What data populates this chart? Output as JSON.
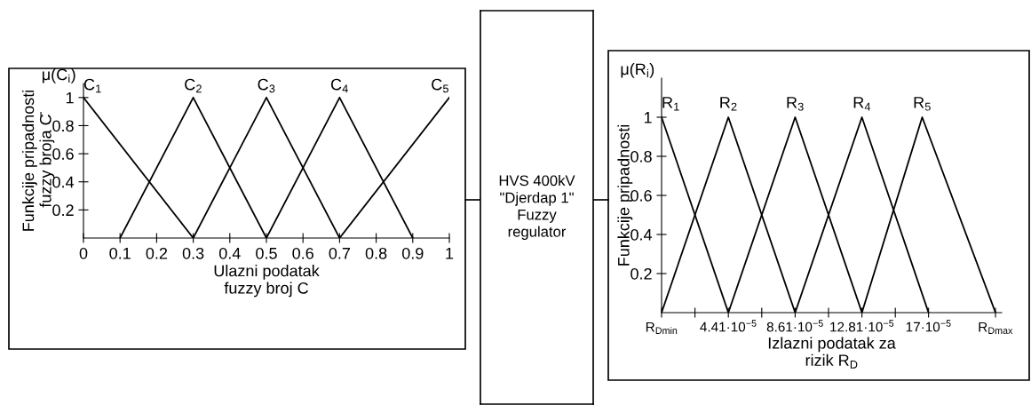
{
  "chart_data": [
    {
      "type": "line",
      "annotations": [
        "μ(C$_{i}$)"
      ],
      "ylabel": "Funkcije pripadnosti\nfuzzy broja C̄",
      "xlabel": "Ulazni podatak\nfuzzy broj C",
      "xlim": [
        0,
        1
      ],
      "xticks": [
        0,
        0.1,
        0.2,
        0.3,
        0.4,
        0.5,
        0.6,
        0.7,
        0.8,
        0.9,
        {
          "value": 1,
          "label": "1"
        }
      ],
      "ylim": [
        0,
        1.1
      ],
      "yticks": [
        0.2,
        0.4,
        0.6,
        0.8,
        {
          "value": 1,
          "label": "1"
        }
      ],
      "series": [
        {
          "name": "C$_{1}$",
          "color": "#000000",
          "x": [
            0,
            0.3
          ],
          "values": [
            1,
            0
          ]
        },
        {
          "name": "C$_{2}$",
          "color": "#000000",
          "x": [
            0.1,
            0.3,
            0.5
          ],
          "values": [
            0,
            1,
            0
          ]
        },
        {
          "name": "C$_{3}$",
          "color": "#000000",
          "x": [
            0.3,
            0.5,
            0.7
          ],
          "values": [
            0,
            1,
            0
          ]
        },
        {
          "name": "C$_{4}$",
          "color": "#000000",
          "x": [
            0.5,
            0.7,
            0.9
          ],
          "values": [
            0,
            1,
            0
          ]
        },
        {
          "name": "C$_{5}$",
          "color": "#000000",
          "x": [
            0.7,
            1
          ],
          "values": [
            0,
            1
          ]
        }
      ]
    },
    {
      "type": "other",
      "annotations": [
        "HVS 400kV\n\"Djerdap 1\"\nFuzzy\nregulator"
      ]
    },
    {
      "type": "line",
      "annotations": [
        "μ(R$_{i}$)"
      ],
      "ylabel": "Funkcije pripadnosti",
      "xlabel": "Izlazni podatak za\nrizik R$_{D}$",
      "xlim": [
        2.1e-06,
        0.000216
      ],
      "xticks": [
        {
          "value": 2.1e-06,
          "label": "R$_{Dmin}$"
        },
        {
          "value": 2.31e-05,
          "label": null
        },
        {
          "value": 4.41e-05,
          "label": "4.41·10$^{−5}$"
        },
        {
          "value": 6.51e-05,
          "label": null
        },
        {
          "value": 8.61e-05,
          "label": "8.61·10$^{−5}$"
        },
        {
          "value": 0.0001071,
          "label": null
        },
        {
          "value": 0.0001281,
          "label": "12.81·10$^{−5}$"
        },
        {
          "value": 0.0001491,
          "label": null
        },
        {
          "value": 0.00017,
          "label": "17·10$^{−5}$"
        },
        {
          "value": 0.0002121,
          "label": "R$_{Dmax}$"
        }
      ],
      "ylim": [
        0,
        1.2
      ],
      "yticks": [
        0.2,
        0.4,
        0.6,
        0.8,
        {
          "value": 1,
          "label": "1"
        }
      ],
      "series": [
        {
          "name": "R$_{1}$",
          "color": "#000000",
          "x": [
            2.1e-06,
            4.41e-05
          ],
          "values": [
            1,
            0
          ]
        },
        {
          "name": "R$_{2}$",
          "color": "#000000",
          "x": [
            2.1e-06,
            4.41e-05,
            8.61e-05
          ],
          "values": [
            0,
            1,
            0
          ]
        },
        {
          "name": "R$_{3}$",
          "color": "#000000",
          "x": [
            4.41e-05,
            8.61e-05,
            0.0001281
          ],
          "values": [
            0,
            1,
            0
          ]
        },
        {
          "name": "R$_{4}$",
          "color": "#000000",
          "x": [
            8.61e-05,
            0.0001281,
            0.00017
          ],
          "values": [
            0,
            1,
            0
          ]
        },
        {
          "name": "R$_{5}$",
          "color": "#000000",
          "x": [
            0.0001281,
            0.000166,
            0.0002121
          ],
          "values": [
            0,
            1,
            0
          ]
        }
      ]
    }
  ]
}
